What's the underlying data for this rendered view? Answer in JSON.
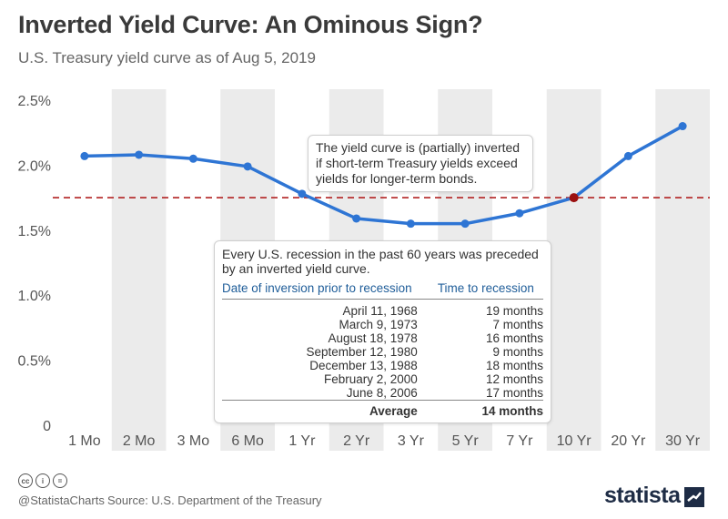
{
  "header": {
    "title": "Inverted Yield Curve: An Ominous Sign?",
    "subtitle": "U.S. Treasury yield curve as of Aug 5, 2019"
  },
  "chart_data": {
    "type": "line",
    "categories": [
      "1 Mo",
      "2 Mo",
      "3 Mo",
      "6 Mo",
      "1 Yr",
      "2 Yr",
      "3 Yr",
      "5 Yr",
      "7 Yr",
      "10 Yr",
      "20 Yr",
      "30 Yr"
    ],
    "values": [
      2.07,
      2.08,
      2.05,
      1.99,
      1.78,
      1.59,
      1.55,
      1.55,
      1.63,
      1.75,
      2.07,
      2.3
    ],
    "ylim": [
      0,
      2.5
    ],
    "yticks": [
      0,
      0.5,
      1.0,
      1.5,
      2.0,
      2.5
    ],
    "ytick_labels": [
      "0",
      "0.5%",
      "1.0%",
      "1.5%",
      "2.0%",
      "2.5%"
    ],
    "reference_line": {
      "value": 1.75,
      "style": "dashed",
      "color": "#b22222"
    },
    "highlight_point": {
      "category": "10 Yr",
      "color": "#9b1111"
    },
    "line_color": "#2e75d4",
    "grid": false,
    "alternating_column_shading": true,
    "xlabel": "",
    "ylabel": ""
  },
  "annotations": {
    "inversion_note": "The yield curve is (partially) inverted if short-term Treasury yields exceed yields for longer-term bonds.",
    "recession_note": "Every U.S. recession in the past 60 years was preceded by an inverted yield curve."
  },
  "recession_table": {
    "headers": [
      "Date of inversion prior to recession",
      "Time to recession"
    ],
    "rows": [
      [
        "April 11, 1968",
        "19 months"
      ],
      [
        "March 9, 1973",
        "7 months"
      ],
      [
        "August 18, 1978",
        "16 months"
      ],
      [
        "September 12, 1980",
        "9 months"
      ],
      [
        "December 13, 1988",
        "18 months"
      ],
      [
        "February 2, 2000",
        "12 months"
      ],
      [
        "June 8, 2006",
        "17 months"
      ]
    ],
    "footer": [
      "Average",
      "14 months"
    ]
  },
  "footer": {
    "license_icons": [
      "cc-icon",
      "attribution-icon",
      "noderivatives-icon"
    ],
    "license_glyphs": [
      "cc",
      "i",
      "="
    ],
    "handle": "@StatistaCharts",
    "source": "Source: U.S. Department of the Treasury",
    "logo": "statista"
  }
}
